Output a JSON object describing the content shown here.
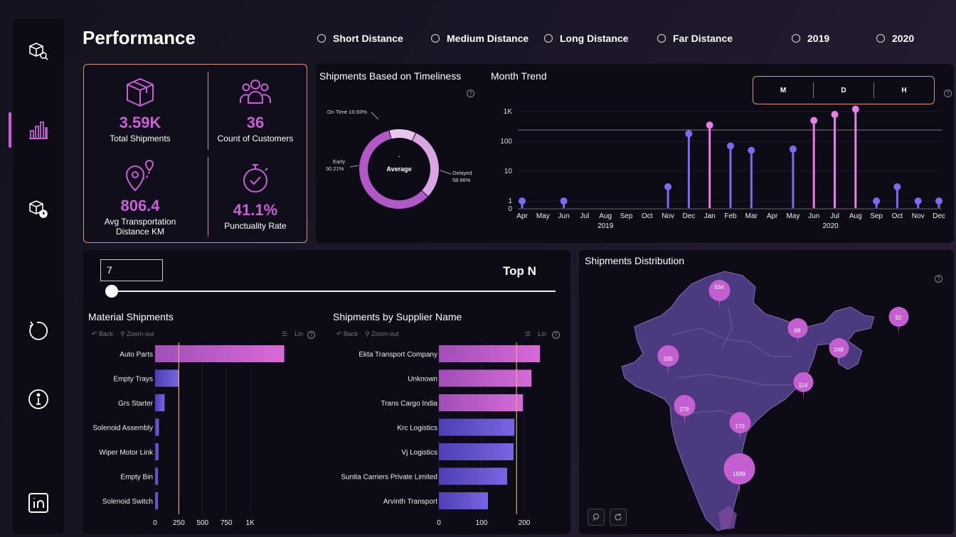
{
  "header": {
    "title": "Performance"
  },
  "filters": [
    {
      "label": "Short Distance"
    },
    {
      "label": "Medium Distance"
    },
    {
      "label": "Long Distance"
    },
    {
      "label": "Far Distance"
    },
    {
      "label": "2019"
    },
    {
      "label": "2020"
    }
  ],
  "sidebar": {
    "items": [
      {
        "icon": "shipment-search-icon"
      },
      {
        "icon": "bar-chart-icon",
        "active": true
      },
      {
        "icon": "shipment-clock-icon"
      },
      {
        "icon": "refresh-icon"
      },
      {
        "icon": "info-icon"
      },
      {
        "icon": "linkedin-icon"
      }
    ]
  },
  "kpis": [
    {
      "value": "3.59K",
      "label": "Total Shipments",
      "icon": "package-icon"
    },
    {
      "value": "36",
      "label": "Count of Customers",
      "icon": "customers-icon"
    },
    {
      "value": "806.4",
      "label": "Avg Transportation Distance KM",
      "icon": "route-pin-icon"
    },
    {
      "value": "41.1%",
      "label": "Punctuality Rate",
      "icon": "stopwatch-icon"
    }
  ],
  "timeliness": {
    "title": "Shipments Based on Timeliness",
    "center_top": "-",
    "center_label": "Average",
    "labels": {
      "on_time": "On Time 10.93%",
      "early_name": "Early",
      "early_pct": "30.21%",
      "delayed_name": "Delayed",
      "delayed_pct": "58.86%"
    }
  },
  "month_trend": {
    "title": "Month Trend",
    "granularity": [
      "M",
      "D",
      "H"
    ],
    "years": [
      "2019",
      "2020"
    ]
  },
  "topn": {
    "value": "7",
    "label": "Top N",
    "slider_fraction": 0.0
  },
  "material": {
    "title": "Material Shipments",
    "toolbar": {
      "back": "Back",
      "zoom": "Zoom-out",
      "lin": "Lin"
    }
  },
  "supplier": {
    "title": "Shipments by Supplier Name",
    "toolbar": {
      "back": "Back",
      "zoom": "Zoom-out",
      "lin": "Lin"
    }
  },
  "map": {
    "title": "Shipments Distribution",
    "pins": [
      "634",
      "92",
      "68",
      "248",
      "335",
      "114",
      "279",
      "170",
      "1589"
    ]
  },
  "colors": {
    "accent": "#c960d6",
    "blue": "#6b5fd8",
    "line": "#d9927a",
    "map_fill": "#4b3a7e"
  },
  "chart_data": [
    {
      "type": "pie",
      "title": "Shipments Based on Timeliness",
      "categories": [
        "On Time",
        "Early",
        "Delayed"
      ],
      "values": [
        10.93,
        30.21,
        58.86
      ],
      "colors": [
        "#e8c6ec",
        "#d9a6e3",
        "#b257c6"
      ]
    },
    {
      "type": "scatter",
      "title": "Month Trend",
      "categories": [
        "Apr",
        "May",
        "Jun",
        "Jul",
        "Aug",
        "Sep",
        "Oct",
        "Nov",
        "Dec",
        "Jan",
        "Feb",
        "Mar",
        "Apr",
        "May",
        "Jun",
        "Jul",
        "Aug",
        "Sep",
        "Oct",
        "Nov",
        "Dec"
      ],
      "values": [
        1,
        null,
        1,
        null,
        null,
        null,
        null,
        3,
        180,
        350,
        70,
        50,
        null,
        55,
        500,
        800,
        1200,
        1,
        3,
        1,
        1
      ],
      "colors": [
        "blue",
        null,
        "blue",
        null,
        null,
        null,
        null,
        "blue",
        "blue",
        "pink",
        "blue",
        "blue",
        null,
        "blue",
        "pink",
        "pink",
        "pink",
        "blue",
        "blue",
        "blue",
        "blue"
      ],
      "yscale": "log",
      "yticks": [
        "0",
        "1",
        "10",
        "100",
        "1K"
      ],
      "ylim": [
        0,
        1500
      ],
      "reference_line": 240
    },
    {
      "type": "bar",
      "title": "Material Shipments",
      "categories": [
        "Auto Parts",
        "Empty Trays",
        "Grs Starter",
        "Solenoid Assembly",
        "Wiper Motor Link",
        "Empty Bin",
        "Solenoid Switch"
      ],
      "values": [
        1360,
        250,
        100,
        40,
        35,
        30,
        30
      ],
      "xticks": [
        "0",
        "250",
        "500",
        "750",
        "1K"
      ],
      "xlim": [
        0,
        1400
      ],
      "reference_line": 250
    },
    {
      "type": "bar",
      "title": "Shipments by Supplier Name",
      "categories": [
        "Ekta Transport Company",
        "Unknown",
        "Trans Cargo India",
        "Krc Logistics",
        "Vj Logistics",
        "Sunita Carriers Private Limited",
        "Arvinth Transport"
      ],
      "values": [
        237,
        217,
        197,
        177,
        175,
        160,
        115
      ],
      "xticks": [
        "0",
        "100",
        "200"
      ],
      "xlim": [
        0,
        240
      ],
      "reference_line": 182
    }
  ]
}
